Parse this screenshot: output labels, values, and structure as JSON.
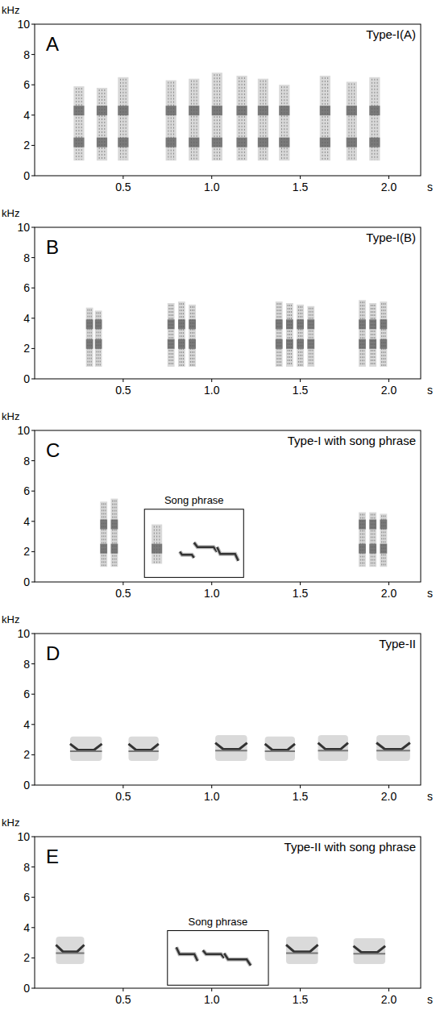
{
  "chart_data": [
    {
      "type": "spectrogram",
      "panel": "A",
      "title": "Type-I(A)",
      "x_label": "s",
      "y_label": "kHz",
      "xlim": [
        0,
        2.18
      ],
      "ylim": [
        0,
        10
      ],
      "xticks": [
        0.5,
        {
          "value": 1,
          "label": "1.0"
        },
        1.5,
        {
          "value": 2,
          "label": "2.0"
        }
      ],
      "yticks": [
        0,
        2,
        4,
        6,
        8,
        10
      ],
      "bands": [
        2.2,
        4.3
      ],
      "series": [
        {
          "marker": "burst",
          "start": [
            0.22,
            0.35,
            0.47,
            0.74,
            0.87,
            1.0,
            1.14,
            1.26,
            1.38,
            1.61,
            1.76,
            1.89
          ],
          "end": [
            0.28,
            0.41,
            0.53,
            0.8,
            0.93,
            1.06,
            1.2,
            1.32,
            1.44,
            1.67,
            1.82,
            1.95
          ],
          "low": [
            1.0,
            1.0,
            1.0,
            1.0,
            1.0,
            1.0,
            1.0,
            1.0,
            1.0,
            1.0,
            1.0,
            1.0
          ],
          "high": [
            5.9,
            5.8,
            6.5,
            6.3,
            6.4,
            6.8,
            6.6,
            6.4,
            6.0,
            6.6,
            6.2,
            6.5
          ]
        }
      ]
    },
    {
      "type": "spectrogram",
      "panel": "B",
      "title": "Type-I(B)",
      "x_label": "s",
      "y_label": "kHz",
      "xlim": [
        0,
        2.18
      ],
      "ylim": [
        0,
        10
      ],
      "xticks": [
        0.5,
        {
          "value": 1,
          "label": "1.0"
        },
        1.5,
        {
          "value": 2,
          "label": "2.0"
        }
      ],
      "yticks": [
        0,
        2,
        4,
        6,
        8,
        10
      ],
      "bands": [
        2.3,
        3.6
      ],
      "series": [
        {
          "marker": "burst",
          "start": [
            0.29,
            0.34,
            0.75,
            0.81,
            0.87,
            1.36,
            1.42,
            1.48,
            1.54,
            1.83,
            1.89,
            1.95
          ],
          "end": [
            0.33,
            0.38,
            0.79,
            0.85,
            0.91,
            1.4,
            1.46,
            1.52,
            1.58,
            1.87,
            1.93,
            1.99
          ],
          "low": [
            0.8,
            0.8,
            0.8,
            0.8,
            0.8,
            0.8,
            0.8,
            0.8,
            0.8,
            0.8,
            0.8,
            0.8
          ],
          "high": [
            4.7,
            4.5,
            5.0,
            5.1,
            4.9,
            5.1,
            5.0,
            4.9,
            4.8,
            5.2,
            5.0,
            5.1
          ]
        }
      ]
    },
    {
      "type": "spectrogram",
      "panel": "C",
      "title": "Type-I with song phrase",
      "x_label": "s",
      "y_label": "kHz",
      "xlim": [
        0,
        2.18
      ],
      "ylim": [
        0,
        10
      ],
      "xticks": [
        0.5,
        {
          "value": 1,
          "label": "1.0"
        },
        1.5,
        {
          "value": 2,
          "label": "2.0"
        }
      ],
      "yticks": [
        0,
        2,
        4,
        6,
        8,
        10
      ],
      "bands": [
        2.2,
        3.8
      ],
      "series": [
        {
          "marker": "burst",
          "start": [
            0.37,
            0.43,
            1.83,
            1.89,
            1.95
          ],
          "end": [
            0.41,
            0.47,
            1.87,
            1.93,
            1.99
          ],
          "low": [
            1.0,
            1.0,
            1.0,
            1.0,
            1.0
          ],
          "high": [
            5.3,
            5.5,
            4.6,
            4.6,
            4.5
          ]
        }
      ],
      "song_phrase": {
        "label": "Song phrase",
        "start": 0.62,
        "end": 1.18,
        "low": 0.3,
        "high": 4.8,
        "series": [
          {
            "marker": "burst",
            "start": [
              0.66
            ],
            "end": [
              0.72
            ],
            "low": [
              1.2
            ],
            "high": [
              3.8
            ]
          },
          {
            "marker": "tone",
            "start": [
              0.82,
              0.9,
              1.03
            ],
            "end": [
              0.9,
              1.03,
              1.15
            ],
            "low": [
              1.6,
              2.0,
              1.4
            ],
            "high": [
              2.0,
              2.6,
              2.3
            ]
          }
        ]
      }
    },
    {
      "type": "spectrogram",
      "panel": "D",
      "title": "Type-II",
      "x_label": "s",
      "y_label": "kHz",
      "xlim": [
        0,
        2.18
      ],
      "ylim": [
        0,
        10
      ],
      "xticks": [
        0.5,
        {
          "value": 1,
          "label": "1.0"
        },
        1.5,
        {
          "value": 2,
          "label": "2.0"
        }
      ],
      "yticks": [
        0,
        2,
        4,
        6,
        8,
        10
      ],
      "series": [
        {
          "marker": "contour",
          "start": [
            0.2,
            0.53,
            1.02,
            1.3,
            1.6,
            1.93
          ],
          "end": [
            0.38,
            0.7,
            1.2,
            1.47,
            1.77,
            2.12
          ],
          "low": [
            1.6,
            1.6,
            1.6,
            1.6,
            1.6,
            1.6
          ],
          "high": [
            3.2,
            3.2,
            3.3,
            3.2,
            3.3,
            3.3
          ]
        }
      ]
    },
    {
      "type": "spectrogram",
      "panel": "E",
      "title": "Type-II with song phrase",
      "x_label": "s",
      "y_label": "kHz",
      "xlim": [
        0,
        2.18
      ],
      "ylim": [
        0,
        10
      ],
      "xticks": [
        0.5,
        {
          "value": 1,
          "label": "1.0"
        },
        1.5,
        {
          "value": 2,
          "label": "2.0"
        }
      ],
      "yticks": [
        0,
        2,
        4,
        6,
        8,
        10
      ],
      "series": [
        {
          "marker": "contour",
          "start": [
            0.12,
            1.42,
            1.8
          ],
          "end": [
            0.28,
            1.6,
            1.98
          ],
          "low": [
            1.6,
            1.6,
            1.6
          ],
          "high": [
            3.4,
            3.4,
            3.3
          ]
        }
      ],
      "song_phrase": {
        "label": "Song phrase",
        "start": 0.75,
        "end": 1.32,
        "low": 0.2,
        "high": 3.8,
        "series": [
          {
            "marker": "tone",
            "start": [
              0.8,
              0.95,
              1.07
            ],
            "end": [
              0.92,
              1.07,
              1.22
            ],
            "low": [
              1.8,
              2.0,
              1.5
            ],
            "high": [
              2.7,
              2.5,
              2.3
            ]
          }
        ]
      }
    }
  ]
}
